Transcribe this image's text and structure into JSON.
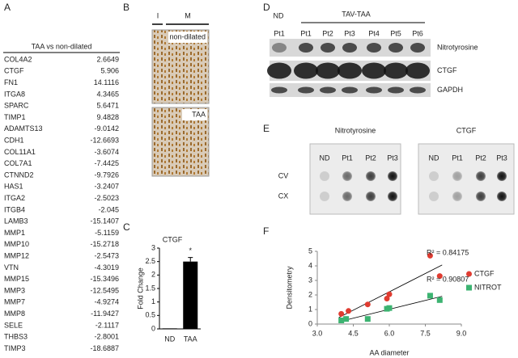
{
  "panel_a": {
    "label": "A",
    "header": "TAA vs non-dilated",
    "rows": [
      [
        "COL4A2",
        "2.6649"
      ],
      [
        "CTGF",
        "5.906"
      ],
      [
        "FN1",
        "14.1116"
      ],
      [
        "ITGA8",
        "4.3465"
      ],
      [
        "SPARC",
        "5.6471"
      ],
      [
        "TIMP1",
        "9.4828"
      ],
      [
        "ADAMTS13",
        "-9.0142"
      ],
      [
        "CDH1",
        "-12.6693"
      ],
      [
        "COL11A1",
        "-3.6074"
      ],
      [
        "COL7A1",
        "-7.4425"
      ],
      [
        "CTNND2",
        "-9.7926"
      ],
      [
        "HAS1",
        "-3.2407"
      ],
      [
        "ITGA2",
        "-2.5023"
      ],
      [
        "ITGB4",
        "-2.045"
      ],
      [
        "LAMB3",
        "-15.1407"
      ],
      [
        "MMP1",
        "-5.1159"
      ],
      [
        "MMP10",
        "-15.2718"
      ],
      [
        "MMP12",
        "-2.5473"
      ],
      [
        "VTN",
        "-4.3019"
      ],
      [
        "MMP15",
        "-15.3496"
      ],
      [
        "MMP3",
        "-12.5495"
      ],
      [
        "MMP7",
        "-4.9274"
      ],
      [
        "MMP8",
        "-11.9427"
      ],
      [
        "SELE",
        "-2.1117"
      ],
      [
        "THBS3",
        "-2.8001"
      ],
      [
        "TIMP3",
        "-18.6887"
      ]
    ]
  },
  "panel_b": {
    "label": "B",
    "lanes": [
      "I",
      "M"
    ],
    "images": [
      "non-dilated",
      "TAA"
    ]
  },
  "panel_d": {
    "label": "D",
    "group_nd": "ND",
    "group": "TAV-TAA",
    "lanes": [
      "Pt1",
      "Pt1",
      "Pt2",
      "Pt3",
      "Pt4",
      "Pt5",
      "Pt6"
    ],
    "rows": [
      "Nitrotyrosine",
      "CTGF",
      "GAPDH"
    ]
  },
  "panel_e": {
    "label": "E",
    "groups": [
      "Nitrotyrosine",
      "CTGF"
    ],
    "columns": [
      "ND",
      "Pt1",
      "Pt2",
      "Pt3"
    ],
    "rows": [
      "CV",
      "CX"
    ]
  },
  "chart_data": [
    {
      "label": "C",
      "type": "bar",
      "title": "CTGF",
      "ylabel": "Fold Change",
      "categories": [
        "ND",
        "TAA"
      ],
      "values": [
        0.02,
        2.5
      ],
      "errors": [
        0,
        0.15
      ],
      "color": "#000000",
      "ylim": [
        0,
        3
      ],
      "yticks": [
        0,
        0.5,
        1,
        1.5,
        2,
        2.5,
        3
      ],
      "annotations": [
        "*"
      ]
    },
    {
      "label": "F",
      "type": "scatter",
      "xlabel": "AA diameter",
      "ylabel": "Densitometry",
      "xlim": [
        3,
        9
      ],
      "xticks": [
        {
          "value": 3,
          "label": "3.0"
        },
        {
          "value": 4.5,
          "label": "4.5"
        },
        {
          "value": 6,
          "label": "6.0"
        },
        {
          "value": 7.5,
          "label": "7.5"
        },
        {
          "value": 9,
          "label": "9.0"
        }
      ],
      "ylim": [
        0,
        5
      ],
      "yticks": [
        0,
        1,
        2,
        3,
        4,
        5
      ],
      "legend": "right",
      "trendline": true,
      "series": [
        {
          "name": "CTGF",
          "color": "#e03c31",
          "marker": "circle",
          "x": [
            4,
            4.3,
            5.1,
            5.9,
            6,
            7.7,
            8.1
          ],
          "values": [
            0.7,
            0.9,
            1.35,
            1.75,
            2.05,
            4.7,
            3.3
          ]
        },
        {
          "name": "NITROT",
          "color": "#3cb371",
          "marker": "square",
          "x": [
            4,
            4.2,
            5.1,
            5.9,
            6,
            7.7,
            8.1
          ],
          "values": [
            0.25,
            0.35,
            0.35,
            1.05,
            1.1,
            1.95,
            1.65
          ]
        }
      ],
      "annotations": [
        "R² = 0.84175",
        "R² = 0.90807"
      ]
    }
  ]
}
